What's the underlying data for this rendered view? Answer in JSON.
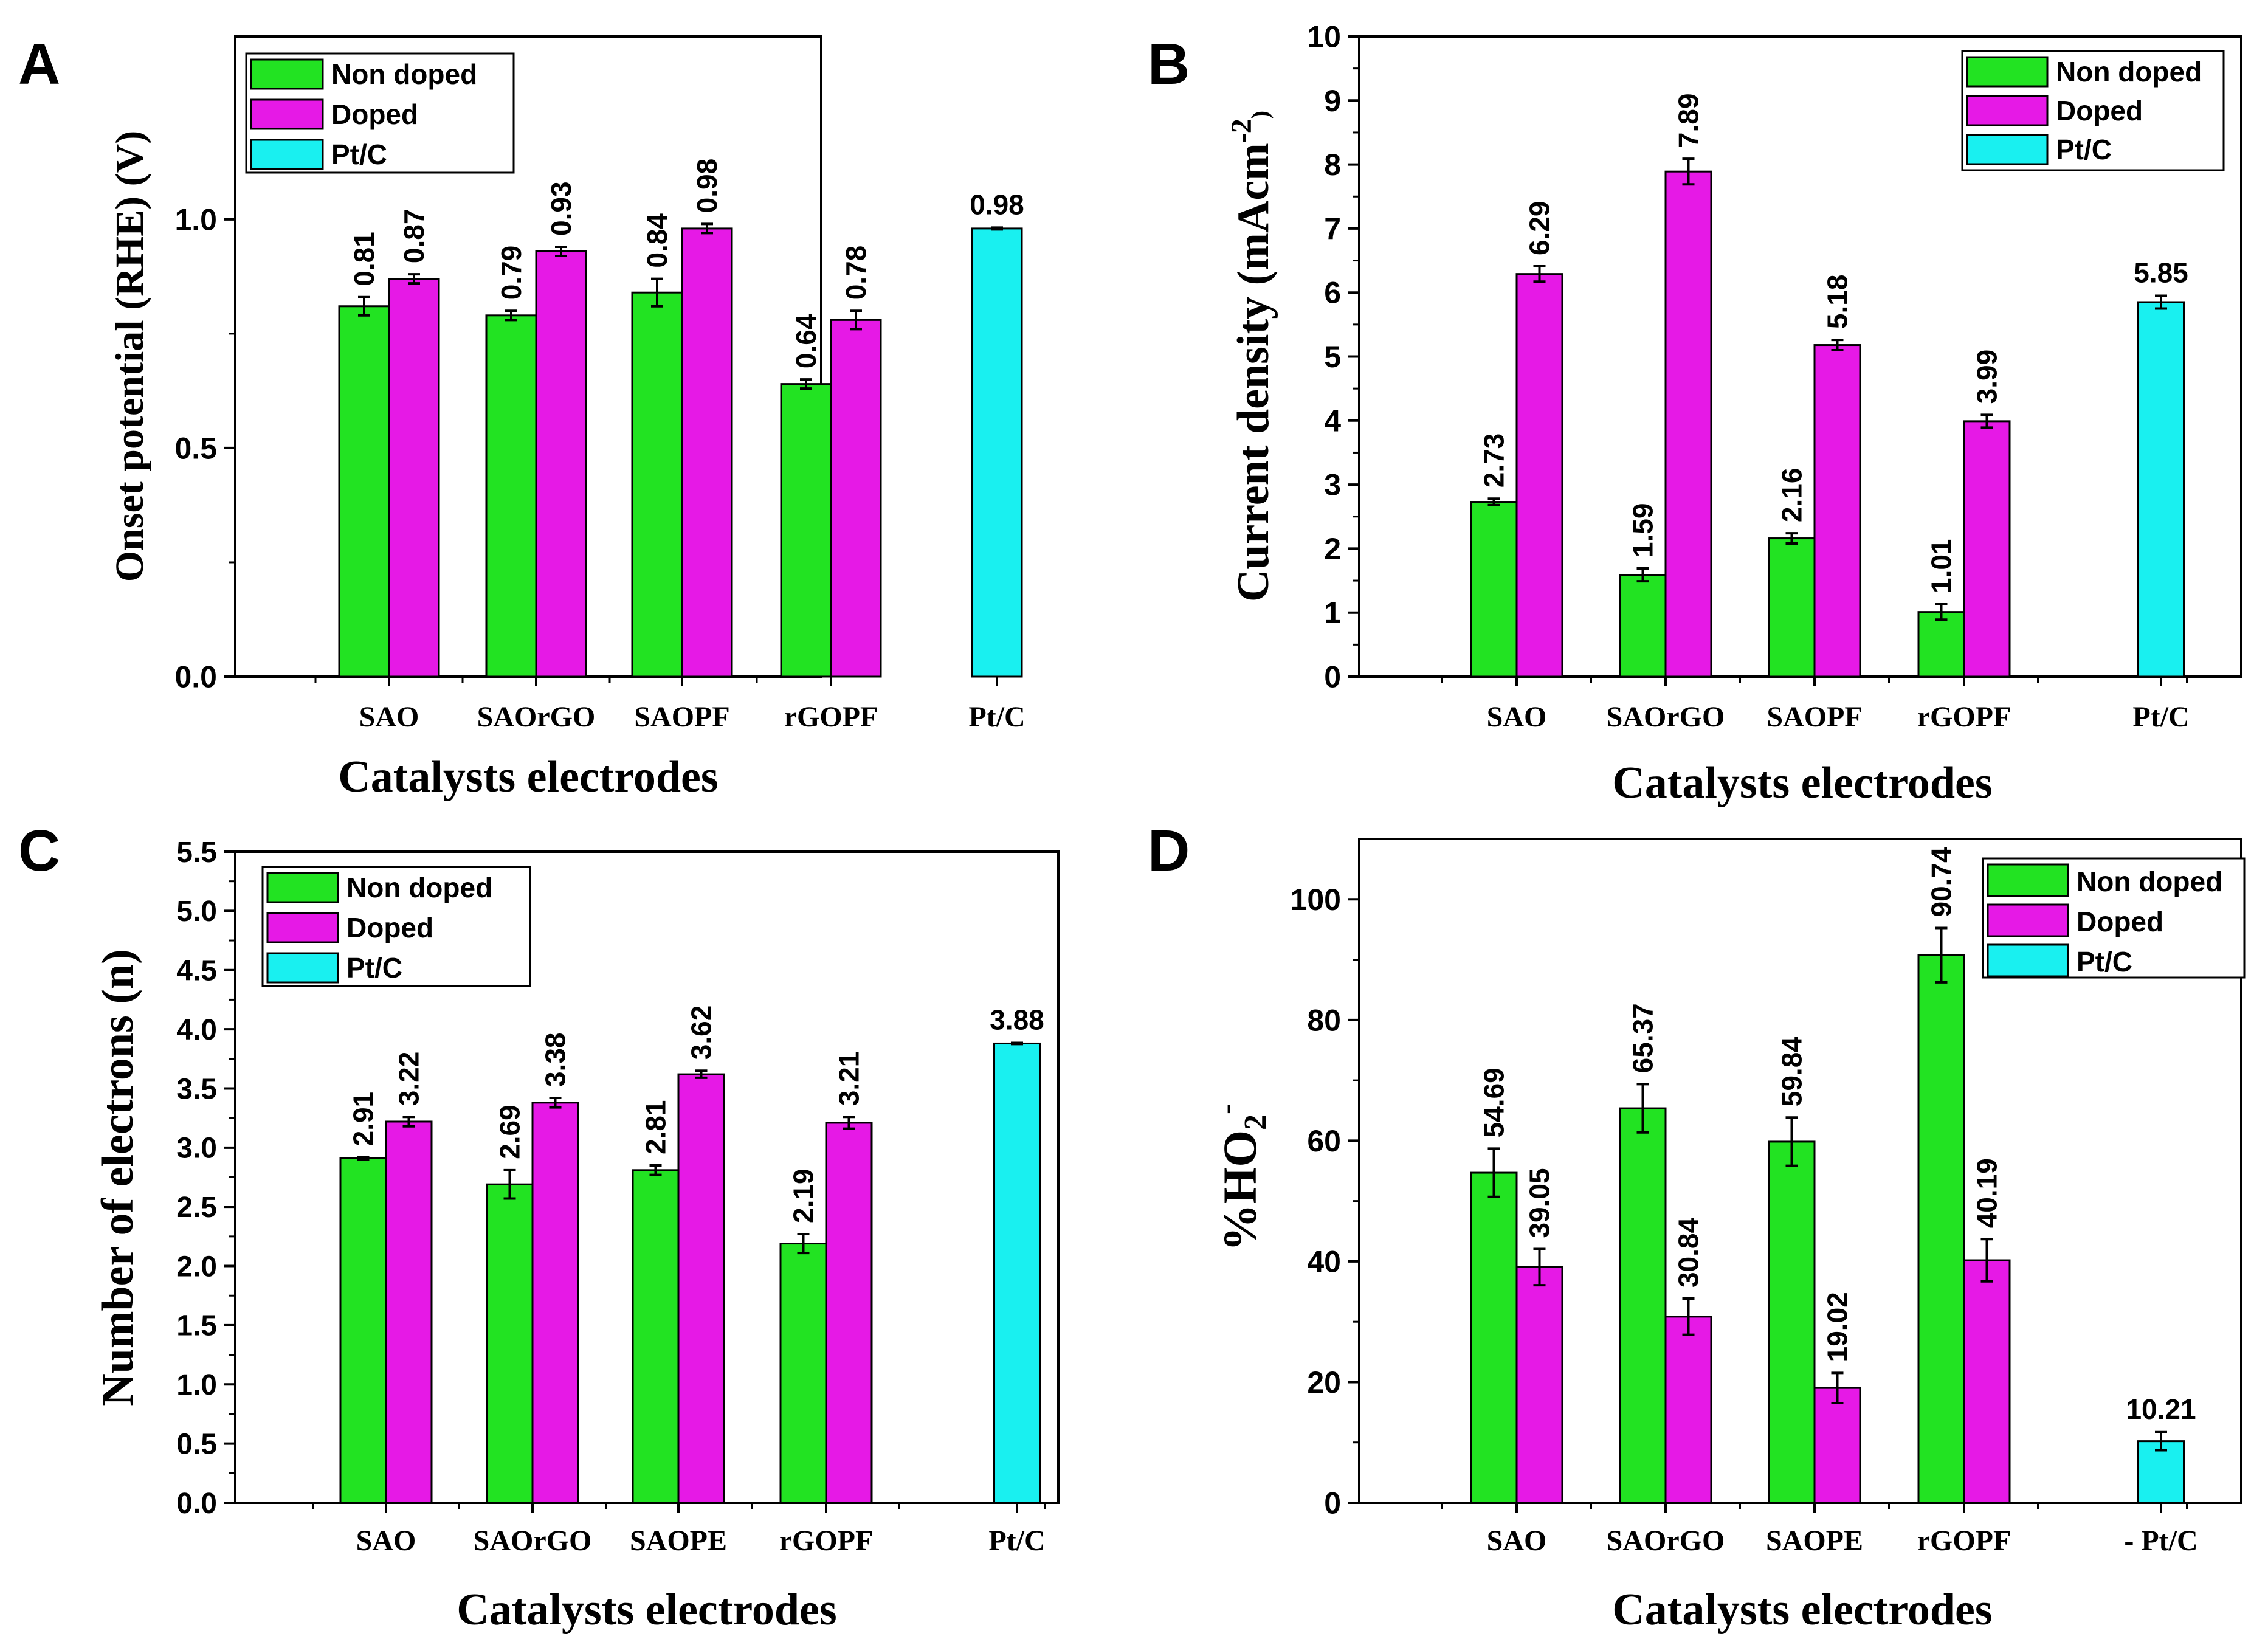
{
  "colors": {
    "non_doped": "#22e322",
    "doped": "#e619e6",
    "ptc": "#19f0f0",
    "stroke": "#000000"
  },
  "chart_data": [
    {
      "panel": "A",
      "type": "bar",
      "title": "",
      "xlabel": "Catalysts electrodes",
      "ylabel": "Onset potential (RHE) (V)",
      "categories": [
        "SAO",
        "SAOrGO",
        "SAOPF",
        "rGOPF",
        "Pt/C"
      ],
      "ylim": [
        0,
        1.4
      ],
      "yticks": [
        0.0,
        0.5,
        1.0
      ],
      "ytick_labels": [
        "0.0",
        "0.5",
        "1.0"
      ],
      "legend": {
        "position": "top-left",
        "entries": [
          "Non doped",
          "Doped",
          "Pt/C"
        ]
      },
      "series": [
        {
          "name": "Non doped",
          "color_key": "non_doped",
          "values": [
            0.81,
            0.79,
            0.84,
            0.64,
            null
          ],
          "labels": [
            "0.81",
            "0.79",
            "0.84",
            "0.64",
            null
          ],
          "errors": [
            0.02,
            0.01,
            0.03,
            0.01,
            null
          ]
        },
        {
          "name": "Doped",
          "color_key": "doped",
          "values": [
            0.87,
            0.93,
            0.98,
            0.78,
            null
          ],
          "labels": [
            "0.87",
            "0.93",
            "0.98",
            "0.78",
            null
          ],
          "errors": [
            0.01,
            0.01,
            0.01,
            0.02,
            null
          ]
        },
        {
          "name": "Pt/C",
          "color_key": "ptc",
          "values": [
            null,
            null,
            null,
            null,
            0.98
          ],
          "labels": [
            null,
            null,
            null,
            null,
            "0.98"
          ],
          "errors": [
            null,
            null,
            null,
            null,
            0.002
          ]
        }
      ]
    },
    {
      "panel": "B",
      "type": "bar",
      "title": "",
      "xlabel": "Catalysts electrodes",
      "ylabel": "Current density (mAcm⁻²)",
      "categories": [
        "SAO",
        "SAOrGO",
        "SAOPF",
        "rGOPF",
        "Pt/C"
      ],
      "ylim": [
        0,
        10
      ],
      "yticks": [
        0,
        1,
        2,
        3,
        4,
        5,
        6,
        7,
        8,
        9,
        10
      ],
      "ytick_labels": [
        "0",
        "1",
        "2",
        "3",
        "4",
        "5",
        "6",
        "7",
        "8",
        "9",
        "10"
      ],
      "legend": {
        "position": "top-right",
        "entries": [
          "Non doped",
          "Doped",
          "Pt/C"
        ]
      },
      "series": [
        {
          "name": "Non doped",
          "color_key": "non_doped",
          "values": [
            2.73,
            1.59,
            2.16,
            1.01,
            null
          ],
          "labels": [
            "2.73",
            "1.59",
            "2.16",
            "1.01",
            null
          ],
          "errors": [
            0.05,
            0.1,
            0.08,
            0.12,
            null
          ]
        },
        {
          "name": "Doped",
          "color_key": "doped",
          "values": [
            6.29,
            7.89,
            5.18,
            3.99,
            null
          ],
          "labels": [
            "6.29",
            "7.89",
            "5.18",
            "3.99",
            null
          ],
          "errors": [
            0.12,
            0.2,
            0.08,
            0.1,
            null
          ]
        },
        {
          "name": "Pt/C",
          "color_key": "ptc",
          "values": [
            null,
            null,
            null,
            null,
            5.85
          ],
          "labels": [
            null,
            null,
            null,
            null,
            "5.85"
          ],
          "errors": [
            null,
            null,
            null,
            null,
            0.1
          ]
        }
      ]
    },
    {
      "panel": "C",
      "type": "bar",
      "title": "",
      "xlabel": "Catalysts electrodes",
      "ylabel": "Number of electrons (n)",
      "categories": [
        "SAO",
        "SAOrGO",
        "SAOPE",
        "rGOPF",
        "Pt/C"
      ],
      "ylim": [
        0,
        5.5
      ],
      "yticks": [
        0.0,
        0.5,
        1.0,
        1.5,
        2.0,
        2.5,
        3.0,
        3.5,
        4.0,
        4.5,
        5.0,
        5.5
      ],
      "ytick_labels": [
        "0.0",
        "0.5",
        "1.0",
        "1.5",
        "2.0",
        "2.5",
        "3.0",
        "3.5",
        "4.0",
        "4.5",
        "5.0",
        "5.5"
      ],
      "legend": {
        "position": "top-left",
        "entries": [
          "Non doped",
          "Doped",
          "Pt/C"
        ]
      },
      "series": [
        {
          "name": "Non doped",
          "color_key": "non_doped",
          "values": [
            2.91,
            2.69,
            2.81,
            2.19,
            null
          ],
          "labels": [
            "2.91",
            "2.69",
            "2.81",
            "2.19",
            null
          ],
          "errors": [
            0.01,
            0.12,
            0.04,
            0.08,
            null
          ]
        },
        {
          "name": "Doped",
          "color_key": "doped",
          "values": [
            3.22,
            3.38,
            3.62,
            3.21,
            null
          ],
          "labels": [
            "3.22",
            "3.38",
            "3.62",
            "3.21",
            null
          ],
          "errors": [
            0.04,
            0.04,
            0.03,
            0.05,
            null
          ]
        },
        {
          "name": "Pt/C",
          "color_key": "ptc",
          "values": [
            null,
            null,
            null,
            null,
            3.88
          ],
          "labels": [
            null,
            null,
            null,
            null,
            "3.88"
          ],
          "errors": [
            null,
            null,
            null,
            null,
            0.005
          ]
        }
      ]
    },
    {
      "panel": "D",
      "type": "bar",
      "title": "",
      "xlabel": "Catalysts electrodes",
      "ylabel": "%HO₂⁻",
      "categories": [
        "SAO",
        "SAOrGO",
        "SAOPE",
        "rGOPF",
        "Pt/C"
      ],
      "category_prefix_last": "-",
      "ylim": [
        0,
        110
      ],
      "yticks": [
        0,
        20,
        40,
        60,
        80,
        100
      ],
      "ytick_labels": [
        "0",
        "20",
        "40",
        "60",
        "80",
        "100"
      ],
      "legend": {
        "position": "top-right",
        "entries": [
          "Non doped",
          "Doped",
          "Pt/C"
        ]
      },
      "series": [
        {
          "name": "Non doped",
          "color_key": "non_doped",
          "values": [
            54.69,
            65.37,
            59.84,
            90.74,
            null
          ],
          "labels": [
            "54.69",
            "65.37",
            "59.84",
            "90.74",
            null
          ],
          "errors": [
            4,
            4,
            4,
            4.5,
            null
          ]
        },
        {
          "name": "Doped",
          "color_key": "doped",
          "values": [
            39.05,
            30.84,
            19.02,
            40.19,
            null
          ],
          "labels": [
            "39.05",
            "30.84",
            "19.02",
            "40.19",
            null
          ],
          "errors": [
            3,
            3,
            2.5,
            3.5,
            null
          ]
        },
        {
          "name": "Pt/C",
          "color_key": "ptc",
          "values": [
            null,
            null,
            null,
            null,
            10.21
          ],
          "labels": [
            null,
            null,
            null,
            null,
            "10.21"
          ],
          "errors": [
            null,
            null,
            null,
            null,
            1.5
          ]
        }
      ]
    }
  ]
}
